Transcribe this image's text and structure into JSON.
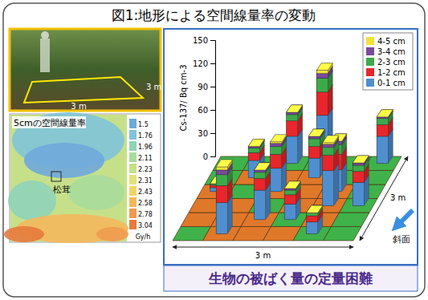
{
  "title": "図1:地形による空間線量率の変動",
  "photo": {
    "labels": [
      "3 m",
      "3 m"
    ]
  },
  "map": {
    "title": "5cmの空間線量率",
    "label": "松茸",
    "colorbar": {
      "ticks": [
        1.5,
        1.76,
        1.96,
        2.11,
        2.23,
        2.31,
        2.43,
        2.58,
        2.78,
        3.04
      ],
      "colors": [
        "#6fa8dc",
        "#7fc4d8",
        "#8fd3b8",
        "#a8dc9a",
        "#c6e08a",
        "#e2e27a",
        "#f2d36a",
        "#f4b85c",
        "#f09a4e",
        "#e67a3c"
      ],
      "unit": "Gy/h"
    }
  },
  "chart_data": {
    "type": "bar",
    "stacked": true,
    "legend": "upper right",
    "tick_labels": "y",
    "ylabel": "Cs-137/ Bq cm-3",
    "xlabel": "3 m",
    "zlabel": "3 m",
    "annotations": [
      "斜面"
    ],
    "ylim": [
      0,
      150
    ],
    "yticks": [
      0,
      30,
      60,
      90,
      120,
      150
    ],
    "xlim": [
      0,
      3
    ],
    "zlim": [
      0,
      3
    ],
    "x": [
      0.75,
      0.25,
      1.25,
      1.25,
      1.75,
      2.25,
      0.75,
      2.25,
      2.25,
      2.75,
      1.25,
      1.75,
      2.75,
      1.75
    ],
    "z": [
      0.25,
      1.75,
      0.75,
      1.75,
      0.75,
      1.75,
      2.25,
      1.25,
      0.25,
      1.25,
      2.75,
      2.75,
      2.75,
      2.25
    ],
    "series": [
      {
        "name": "0-1 cm",
        "color": "#4f8fd0",
        "values": [
          40,
          5,
          38,
          30,
          20,
          28,
          22,
          45,
          15,
          30,
          35,
          62,
          35,
          25
        ]
      },
      {
        "name": "1-2 cm",
        "color": "#e8262c",
        "values": [
          22,
          3,
          15,
          18,
          12,
          20,
          10,
          20,
          8,
          14,
          20,
          30,
          15,
          15
        ]
      },
      {
        "name": "2-3 cm",
        "color": "#3daa4a",
        "values": [
          14,
          2,
          8,
          10,
          6,
          12,
          6,
          10,
          4,
          8,
          8,
          18,
          8,
          10
        ]
      },
      {
        "name": "3-4 cm",
        "color": "#7a4a9c",
        "values": [
          6,
          0,
          3,
          4,
          2,
          5,
          2,
          4,
          0,
          3,
          3,
          6,
          2,
          3
        ]
      },
      {
        "name": "4-5 cm",
        "color": "#f2e23a",
        "values": [
          4,
          0,
          0,
          2,
          0,
          0,
          0,
          2,
          0,
          0,
          0,
          4,
          0,
          0
        ]
      }
    ]
  },
  "footer": "生物の被ばく量の定量困難"
}
